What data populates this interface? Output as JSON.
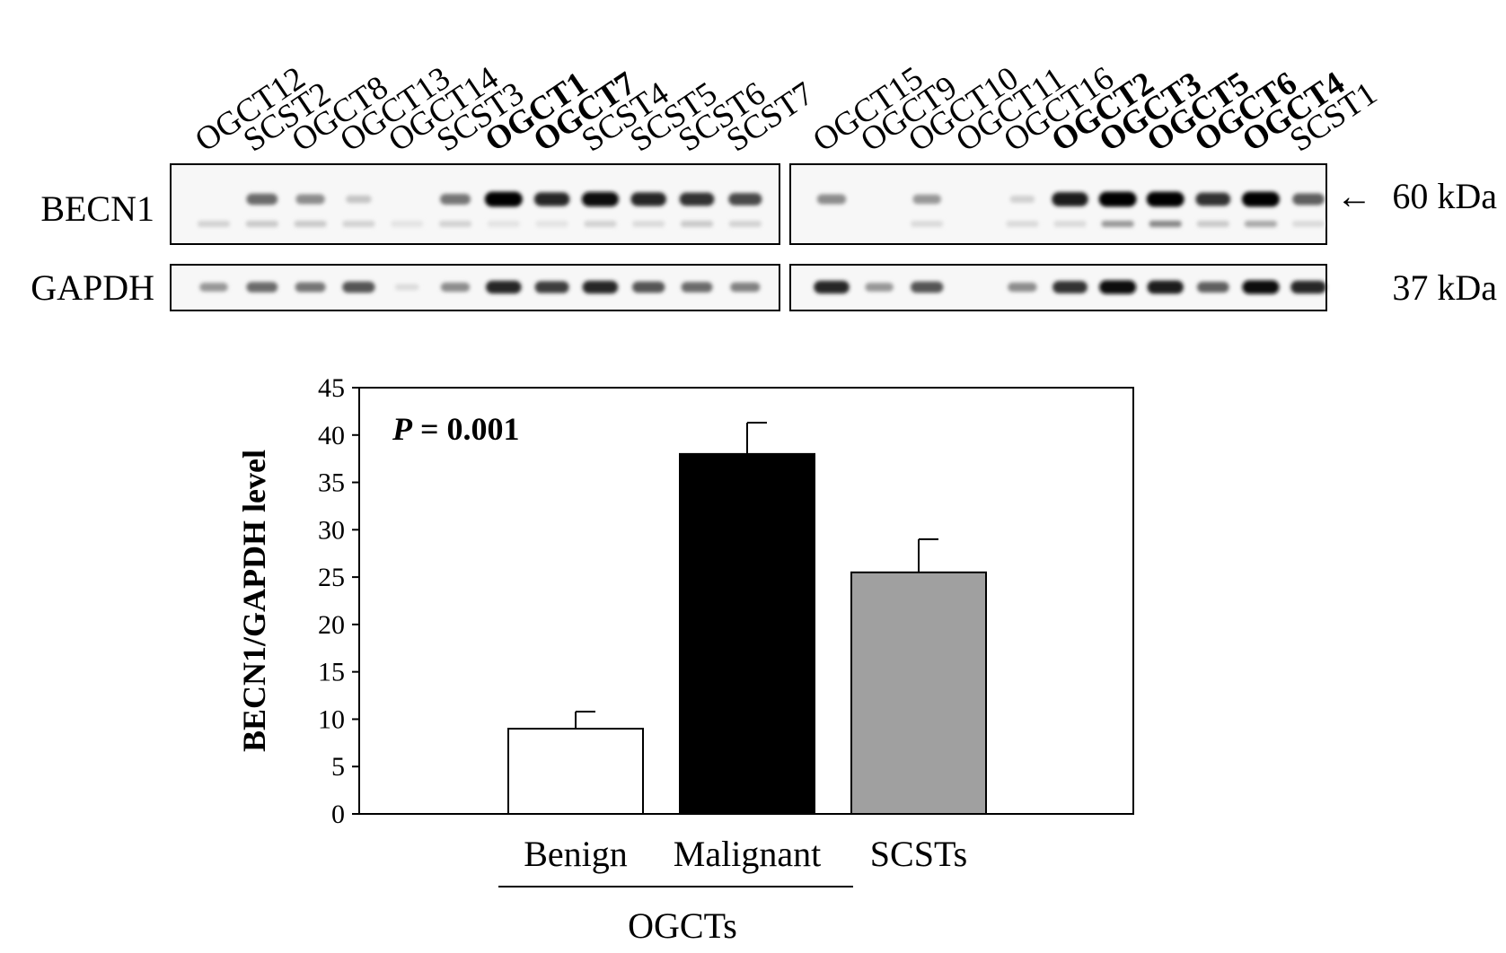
{
  "blot": {
    "panels": [
      {
        "lanes": [
          {
            "label": "OGCT12",
            "bold": false,
            "becn1": 0.0,
            "becn1_lower": 0.15,
            "gapdh": 0.35
          },
          {
            "label": "SCST2",
            "bold": false,
            "becn1": 0.55,
            "becn1_lower": 0.2,
            "gapdh": 0.55
          },
          {
            "label": "OGCT8",
            "bold": false,
            "becn1": 0.4,
            "becn1_lower": 0.2,
            "gapdh": 0.5
          },
          {
            "label": "OGCT13",
            "bold": false,
            "becn1": 0.15,
            "becn1_lower": 0.15,
            "gapdh": 0.65
          },
          {
            "label": "OGCT14",
            "bold": false,
            "becn1": 0.0,
            "becn1_lower": 0.05,
            "gapdh": 0.05
          },
          {
            "label": "SCST3",
            "bold": false,
            "becn1": 0.5,
            "becn1_lower": 0.15,
            "gapdh": 0.4
          },
          {
            "label": "OGCT1",
            "bold": true,
            "becn1": 1.0,
            "becn1_lower": 0.05,
            "gapdh": 0.85
          },
          {
            "label": "OGCT7",
            "bold": true,
            "becn1": 0.85,
            "becn1_lower": 0.05,
            "gapdh": 0.75
          },
          {
            "label": "SCST4",
            "bold": false,
            "becn1": 0.95,
            "becn1_lower": 0.15,
            "gapdh": 0.85
          },
          {
            "label": "SCST5",
            "bold": false,
            "becn1": 0.85,
            "becn1_lower": 0.1,
            "gapdh": 0.65
          },
          {
            "label": "SCST6",
            "bold": false,
            "becn1": 0.8,
            "becn1_lower": 0.2,
            "gapdh": 0.55
          },
          {
            "label": "SCST7",
            "bold": false,
            "becn1": 0.7,
            "becn1_lower": 0.15,
            "gapdh": 0.45
          }
        ]
      },
      {
        "lanes": [
          {
            "label": "OGCT15",
            "bold": false,
            "becn1": 0.4,
            "becn1_lower": 0.0,
            "gapdh": 0.85
          },
          {
            "label": "OGCT9",
            "bold": false,
            "becn1": 0.0,
            "becn1_lower": 0.0,
            "gapdh": 0.35
          },
          {
            "label": "OGCT10",
            "bold": false,
            "becn1": 0.35,
            "becn1_lower": 0.1,
            "gapdh": 0.65
          },
          {
            "label": "OGCT11",
            "bold": false,
            "becn1": 0.0,
            "becn1_lower": 0.0,
            "gapdh": 0.0
          },
          {
            "label": "OGCT16",
            "bold": false,
            "becn1": 0.1,
            "becn1_lower": 0.1,
            "gapdh": 0.4
          },
          {
            "label": "OGCT2",
            "bold": true,
            "becn1": 0.9,
            "becn1_lower": 0.1,
            "gapdh": 0.8
          },
          {
            "label": "OGCT3",
            "bold": true,
            "becn1": 1.0,
            "becn1_lower": 0.5,
            "gapdh": 0.95
          },
          {
            "label": "OGCT5",
            "bold": true,
            "becn1": 1.0,
            "becn1_lower": 0.6,
            "gapdh": 0.9
          },
          {
            "label": "OGCT6",
            "bold": true,
            "becn1": 0.8,
            "becn1_lower": 0.2,
            "gapdh": 0.6
          },
          {
            "label": "OGCT4",
            "bold": true,
            "becn1": 1.0,
            "becn1_lower": 0.4,
            "gapdh": 0.95
          },
          {
            "label": "SCST1",
            "bold": false,
            "becn1": 0.6,
            "becn1_lower": 0.1,
            "gapdh": 0.85
          }
        ]
      }
    ],
    "rows": [
      {
        "name": "BECN1",
        "kda": "60 kDa",
        "arrow": "←"
      },
      {
        "name": "GAPDH",
        "kda": "37 kDa",
        "arrow": ""
      }
    ]
  },
  "chart_data": {
    "type": "bar",
    "categories": [
      "Benign",
      "Malignant",
      "SCSTs"
    ],
    "values": [
      9,
      38,
      25.5
    ],
    "errors": [
      1.8,
      3.3,
      3.5
    ],
    "colors": [
      "#ffffff",
      "#000000",
      "#a0a0a0"
    ],
    "ylabel": "BECN1/GAPDH level",
    "ylim": [
      0,
      45
    ],
    "yticks": [
      0,
      5,
      10,
      15,
      20,
      25,
      30,
      35,
      40,
      45
    ],
    "annotation": {
      "italic": "P",
      "rest": " = 0.001"
    },
    "group": {
      "label": "OGCTs",
      "categories": [
        "Benign",
        "Malignant"
      ]
    },
    "grid": false
  }
}
